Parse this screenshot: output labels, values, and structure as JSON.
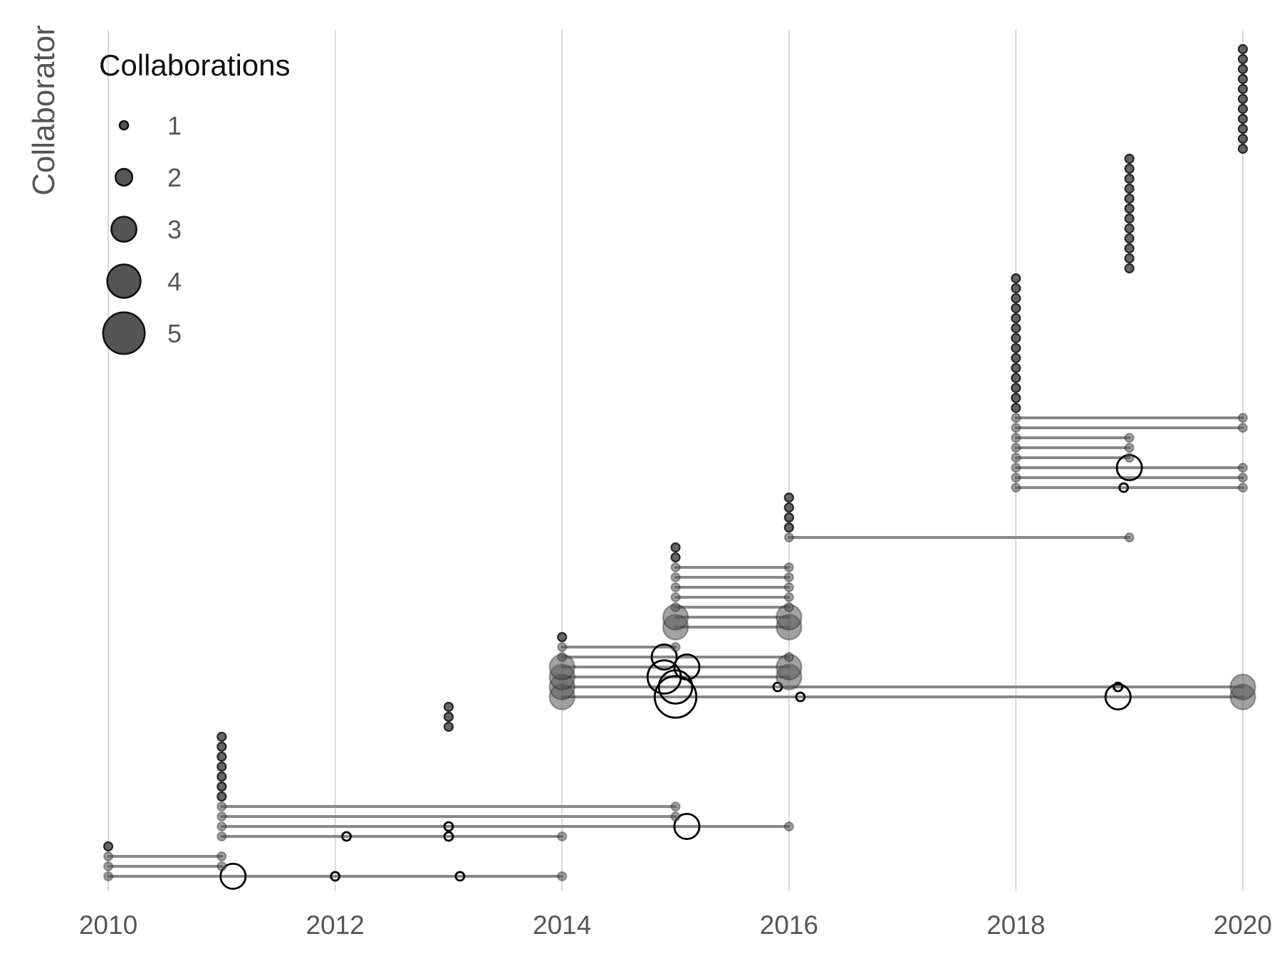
{
  "chart_data": {
    "type": "scatter",
    "title": "",
    "xlabel": "",
    "ylabel": "Collaborator",
    "xlim": [
      2010,
      2020
    ],
    "ylim": [
      1,
      86
    ],
    "x_ticks": [
      2010,
      2012,
      2014,
      2016,
      2018,
      2020
    ],
    "x_tick_labels": [
      "2010",
      "2012",
      "2014",
      "2016",
      "2018",
      "2020"
    ],
    "grid": {
      "vertical": true,
      "horizontal": false,
      "color": "#cfcfcf"
    },
    "legend": {
      "title": "Collaborations",
      "placement": "top-left",
      "sizes": [
        1,
        2,
        3,
        4,
        5
      ],
      "labels": [
        "1",
        "2",
        "3",
        "4",
        "5"
      ]
    },
    "colors": {
      "point_fill": "#555555",
      "point_stroke": "#111111",
      "line": "#888888",
      "grid": "#cfcfcf"
    },
    "collaborators": [
      {
        "y": 1,
        "points": [
          {
            "x": 2010,
            "n": 1
          },
          {
            "x": 2011.1,
            "n": 3,
            "hollow": true
          },
          {
            "x": 2012,
            "n": 1,
            "hollow": true
          },
          {
            "x": 2013.1,
            "n": 1,
            "hollow": true
          },
          {
            "x": 2014,
            "n": 1
          }
        ]
      },
      {
        "y": 2,
        "points": [
          {
            "x": 2010,
            "n": 1
          },
          {
            "x": 2011,
            "n": 1
          }
        ]
      },
      {
        "y": 3,
        "points": [
          {
            "x": 2010,
            "n": 1
          },
          {
            "x": 2011,
            "n": 1
          }
        ]
      },
      {
        "y": 4,
        "points": [
          {
            "x": 2010,
            "n": 1
          }
        ]
      },
      {
        "y": 5,
        "points": [
          {
            "x": 2011,
            "n": 1
          },
          {
            "x": 2012.1,
            "n": 1,
            "hollow": true
          },
          {
            "x": 2013,
            "n": 1,
            "hollow": true
          },
          {
            "x": 2014,
            "n": 1
          }
        ]
      },
      {
        "y": 6,
        "points": [
          {
            "x": 2011,
            "n": 1
          },
          {
            "x": 2013,
            "n": 1,
            "hollow": true
          },
          {
            "x": 2015.1,
            "n": 3,
            "hollow": true
          },
          {
            "x": 2016,
            "n": 1
          }
        ]
      },
      {
        "y": 7,
        "points": [
          {
            "x": 2011,
            "n": 1
          },
          {
            "x": 2015,
            "n": 1
          }
        ]
      },
      {
        "y": 8,
        "points": [
          {
            "x": 2011,
            "n": 1
          },
          {
            "x": 2015,
            "n": 1
          }
        ]
      },
      {
        "y": 9,
        "points": [
          {
            "x": 2011,
            "n": 1
          }
        ]
      },
      {
        "y": 10,
        "points": [
          {
            "x": 2011,
            "n": 1
          }
        ]
      },
      {
        "y": 11,
        "points": [
          {
            "x": 2011,
            "n": 1
          }
        ]
      },
      {
        "y": 12,
        "points": [
          {
            "x": 2011,
            "n": 1
          }
        ]
      },
      {
        "y": 13,
        "points": [
          {
            "x": 2011,
            "n": 1
          }
        ]
      },
      {
        "y": 14,
        "points": [
          {
            "x": 2011,
            "n": 1
          }
        ]
      },
      {
        "y": 15,
        "points": [
          {
            "x": 2011,
            "n": 1
          }
        ]
      },
      {
        "y": 16,
        "points": [
          {
            "x": 2013,
            "n": 1
          }
        ]
      },
      {
        "y": 17,
        "points": [
          {
            "x": 2013,
            "n": 1
          }
        ]
      },
      {
        "y": 18,
        "points": [
          {
            "x": 2013,
            "n": 1
          }
        ]
      },
      {
        "y": 19,
        "points": [
          {
            "x": 2014,
            "n": 3
          },
          {
            "x": 2015,
            "n": 5,
            "hollow": true
          },
          {
            "x": 2016.1,
            "n": 1,
            "hollow": true
          },
          {
            "x": 2018.9,
            "n": 3,
            "hollow": true
          },
          {
            "x": 2020,
            "n": 3
          }
        ]
      },
      {
        "y": 20,
        "points": [
          {
            "x": 2014,
            "n": 3
          },
          {
            "x": 2015,
            "n": 4,
            "hollow": true
          },
          {
            "x": 2015.9,
            "n": 1,
            "hollow": true
          },
          {
            "x": 2018.9,
            "n": 1,
            "hollow": true
          },
          {
            "x": 2020,
            "n": 3
          }
        ]
      },
      {
        "y": 21,
        "points": [
          {
            "x": 2014,
            "n": 3
          },
          {
            "x": 2014.9,
            "n": 4,
            "hollow": true
          },
          {
            "x": 2016,
            "n": 3
          }
        ]
      },
      {
        "y": 22,
        "points": [
          {
            "x": 2014,
            "n": 3
          },
          {
            "x": 2015.1,
            "n": 3,
            "hollow": true
          },
          {
            "x": 2016,
            "n": 3
          }
        ]
      },
      {
        "y": 23,
        "points": [
          {
            "x": 2014,
            "n": 1
          },
          {
            "x": 2014.9,
            "n": 3,
            "hollow": true
          },
          {
            "x": 2016,
            "n": 1
          }
        ]
      },
      {
        "y": 24,
        "points": [
          {
            "x": 2014,
            "n": 1
          },
          {
            "x": 2015,
            "n": 1
          }
        ]
      },
      {
        "y": 25,
        "points": [
          {
            "x": 2014,
            "n": 1
          }
        ]
      },
      {
        "y": 26,
        "points": [
          {
            "x": 2015,
            "n": 3
          },
          {
            "x": 2016,
            "n": 3
          }
        ]
      },
      {
        "y": 27,
        "points": [
          {
            "x": 2015,
            "n": 3
          },
          {
            "x": 2016,
            "n": 3
          }
        ]
      },
      {
        "y": 28,
        "points": [
          {
            "x": 2015,
            "n": 1
          },
          {
            "x": 2016,
            "n": 1
          }
        ]
      },
      {
        "y": 29,
        "points": [
          {
            "x": 2015,
            "n": 1
          },
          {
            "x": 2016,
            "n": 1
          }
        ]
      },
      {
        "y": 30,
        "points": [
          {
            "x": 2015,
            "n": 1
          },
          {
            "x": 2016,
            "n": 1
          }
        ]
      },
      {
        "y": 31,
        "points": [
          {
            "x": 2015,
            "n": 1
          },
          {
            "x": 2016,
            "n": 1
          }
        ]
      },
      {
        "y": 32,
        "points": [
          {
            "x": 2015,
            "n": 1
          },
          {
            "x": 2016,
            "n": 1
          }
        ]
      },
      {
        "y": 33,
        "points": [
          {
            "x": 2015,
            "n": 1
          }
        ]
      },
      {
        "y": 34,
        "points": [
          {
            "x": 2015,
            "n": 1
          }
        ]
      },
      {
        "y": 35,
        "points": [
          {
            "x": 2016,
            "n": 1
          },
          {
            "x": 2019,
            "n": 1
          }
        ]
      },
      {
        "y": 36,
        "points": [
          {
            "x": 2016,
            "n": 1
          }
        ]
      },
      {
        "y": 37,
        "points": [
          {
            "x": 2016,
            "n": 1
          }
        ]
      },
      {
        "y": 38,
        "points": [
          {
            "x": 2016,
            "n": 1
          }
        ]
      },
      {
        "y": 39,
        "points": [
          {
            "x": 2016,
            "n": 1
          }
        ]
      },
      {
        "y": 40,
        "points": [
          {
            "x": 2018,
            "n": 1
          },
          {
            "x": 2018.95,
            "n": 1,
            "hollow": true
          },
          {
            "x": 2020,
            "n": 1
          }
        ]
      },
      {
        "y": 41,
        "points": [
          {
            "x": 2018,
            "n": 1
          },
          {
            "x": 2020,
            "n": 1
          }
        ]
      },
      {
        "y": 42,
        "points": [
          {
            "x": 2018,
            "n": 1
          },
          {
            "x": 2019,
            "n": 3,
            "hollow": true
          },
          {
            "x": 2020,
            "n": 1
          }
        ]
      },
      {
        "y": 43,
        "points": [
          {
            "x": 2018,
            "n": 1
          },
          {
            "x": 2019,
            "n": 1
          }
        ]
      },
      {
        "y": 44,
        "points": [
          {
            "x": 2018,
            "n": 1
          },
          {
            "x": 2019,
            "n": 1
          }
        ]
      },
      {
        "y": 45,
        "points": [
          {
            "x": 2018,
            "n": 1
          },
          {
            "x": 2019,
            "n": 1
          }
        ]
      },
      {
        "y": 46,
        "points": [
          {
            "x": 2018,
            "n": 1
          },
          {
            "x": 2020,
            "n": 1
          }
        ]
      },
      {
        "y": 47,
        "points": [
          {
            "x": 2018,
            "n": 1
          },
          {
            "x": 2020,
            "n": 1
          }
        ]
      },
      {
        "y": 48,
        "points": [
          {
            "x": 2018,
            "n": 1
          }
        ]
      },
      {
        "y": 49,
        "points": [
          {
            "x": 2018,
            "n": 1
          }
        ]
      },
      {
        "y": 50,
        "points": [
          {
            "x": 2018,
            "n": 1
          }
        ]
      },
      {
        "y": 51,
        "points": [
          {
            "x": 2018,
            "n": 1
          }
        ]
      },
      {
        "y": 52,
        "points": [
          {
            "x": 2018,
            "n": 1
          }
        ]
      },
      {
        "y": 53,
        "points": [
          {
            "x": 2018,
            "n": 1
          }
        ]
      },
      {
        "y": 54,
        "points": [
          {
            "x": 2018,
            "n": 1
          }
        ]
      },
      {
        "y": 55,
        "points": [
          {
            "x": 2018,
            "n": 1
          }
        ]
      },
      {
        "y": 56,
        "points": [
          {
            "x": 2018,
            "n": 1
          }
        ]
      },
      {
        "y": 57,
        "points": [
          {
            "x": 2018,
            "n": 1
          }
        ]
      },
      {
        "y": 58,
        "points": [
          {
            "x": 2018,
            "n": 1
          }
        ]
      },
      {
        "y": 59,
        "points": [
          {
            "x": 2018,
            "n": 1
          }
        ]
      },
      {
        "y": 60,
        "points": [
          {
            "x": 2018,
            "n": 1
          }
        ]
      },
      {
        "y": 61,
        "points": [
          {
            "x": 2018,
            "n": 1
          }
        ]
      },
      {
        "y": 62,
        "points": [
          {
            "x": 2019,
            "n": 1
          }
        ]
      },
      {
        "y": 63,
        "points": [
          {
            "x": 2019,
            "n": 1
          }
        ]
      },
      {
        "y": 64,
        "points": [
          {
            "x": 2019,
            "n": 1
          }
        ]
      },
      {
        "y": 65,
        "points": [
          {
            "x": 2019,
            "n": 1
          }
        ]
      },
      {
        "y": 66,
        "points": [
          {
            "x": 2019,
            "n": 1
          }
        ]
      },
      {
        "y": 67,
        "points": [
          {
            "x": 2019,
            "n": 1
          }
        ]
      },
      {
        "y": 68,
        "points": [
          {
            "x": 2019,
            "n": 1
          }
        ]
      },
      {
        "y": 69,
        "points": [
          {
            "x": 2019,
            "n": 1
          }
        ]
      },
      {
        "y": 70,
        "points": [
          {
            "x": 2019,
            "n": 1
          }
        ]
      },
      {
        "y": 71,
        "points": [
          {
            "x": 2019,
            "n": 1
          }
        ]
      },
      {
        "y": 72,
        "points": [
          {
            "x": 2019,
            "n": 1
          }
        ]
      },
      {
        "y": 73,
        "points": [
          {
            "x": 2019,
            "n": 1
          }
        ]
      },
      {
        "y": 74,
        "points": [
          {
            "x": 2020,
            "n": 1
          }
        ]
      },
      {
        "y": 75,
        "points": [
          {
            "x": 2020,
            "n": 1
          }
        ]
      },
      {
        "y": 76,
        "points": [
          {
            "x": 2020,
            "n": 1
          }
        ]
      },
      {
        "y": 77,
        "points": [
          {
            "x": 2020,
            "n": 1
          }
        ]
      },
      {
        "y": 78,
        "points": [
          {
            "x": 2020,
            "n": 1
          }
        ]
      },
      {
        "y": 79,
        "points": [
          {
            "x": 2020,
            "n": 1
          }
        ]
      },
      {
        "y": 80,
        "points": [
          {
            "x": 2020,
            "n": 1
          }
        ]
      },
      {
        "y": 81,
        "points": [
          {
            "x": 2020,
            "n": 1
          }
        ]
      },
      {
        "y": 82,
        "points": [
          {
            "x": 2020,
            "n": 1
          }
        ]
      },
      {
        "y": 83,
        "points": [
          {
            "x": 2020,
            "n": 1
          }
        ]
      },
      {
        "y": 84,
        "points": [
          {
            "x": 2020,
            "n": 1
          }
        ]
      }
    ]
  }
}
